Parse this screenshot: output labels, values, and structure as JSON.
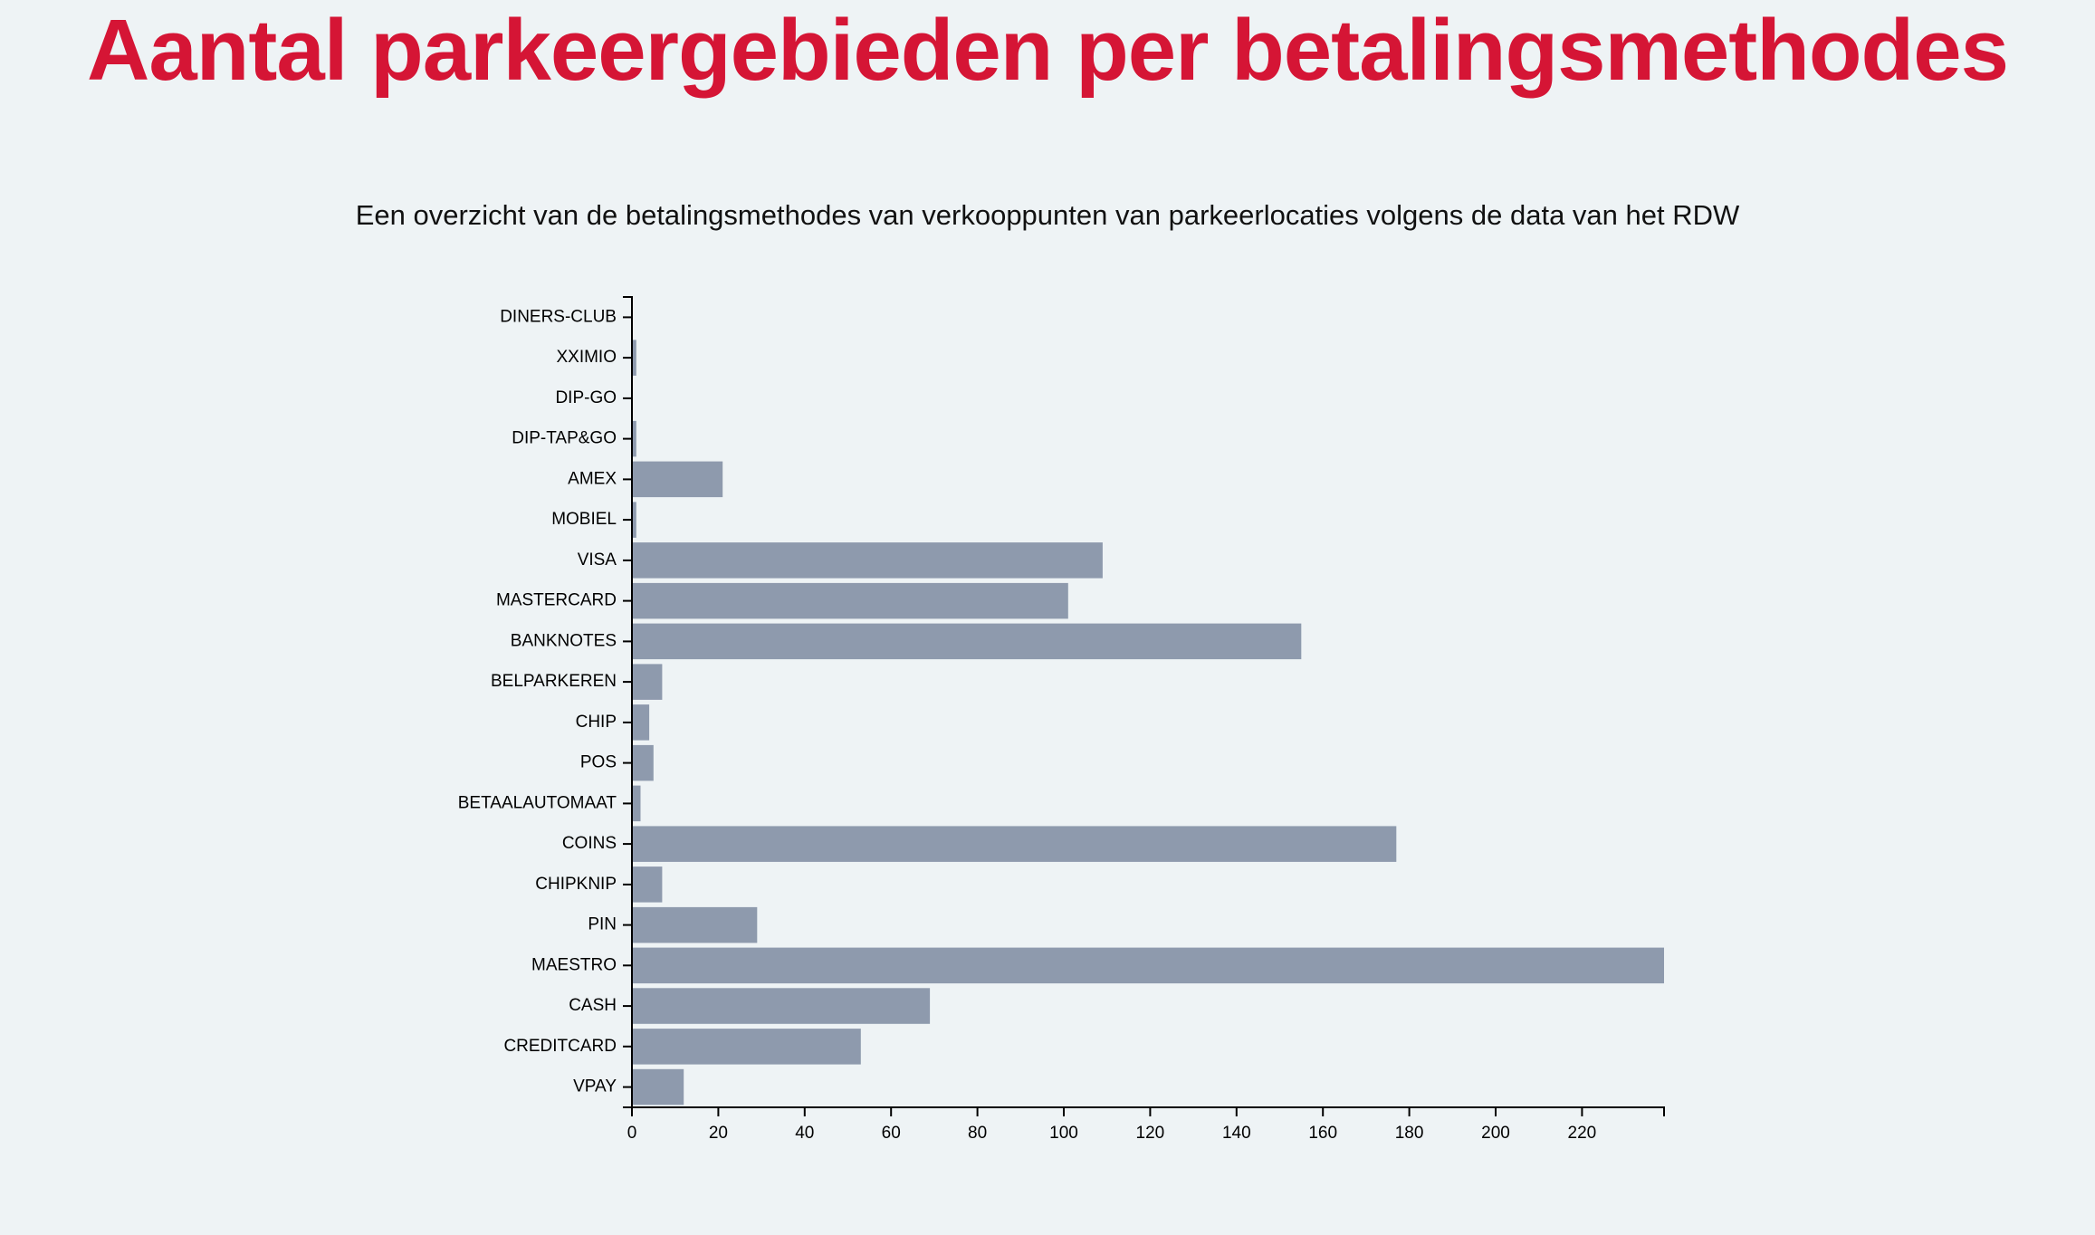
{
  "page": {
    "title": "Aantal parkeergebieden per betalingsmethodes",
    "subtitle": "Een overzicht van de betalingsmethodes van verkooppunten van parkeerlocaties volgens de data van het RDW"
  },
  "colors": {
    "title": "#d51535",
    "bar": "#8e9aad",
    "background": "#eef3f5"
  },
  "chart_data": {
    "type": "bar",
    "orientation": "horizontal",
    "categories": [
      "DINERS-CLUB",
      "XXIMIO",
      "DIP-GO",
      "DIP-TAP&GO",
      "AMEX",
      "MOBIEL",
      "VISA",
      "MASTERCARD",
      "BANKNOTES",
      "BELPARKEREN",
      "CHIP",
      "POS",
      "BETAALAUTOMAAT",
      "COINS",
      "CHIPKNIP",
      "PIN",
      "MAESTRO",
      "CASH",
      "CREDITCARD",
      "VPAY"
    ],
    "values": [
      0,
      1,
      0,
      1,
      21,
      1,
      109,
      101,
      155,
      7,
      4,
      5,
      2,
      177,
      7,
      29,
      239,
      69,
      53,
      12
    ],
    "xticks": [
      0,
      20,
      40,
      60,
      80,
      100,
      120,
      140,
      160,
      180,
      200,
      220
    ],
    "xlim": [
      0,
      239
    ],
    "title": "Aantal parkeergebieden per betalingsmethodes",
    "subtitle": "Een overzicht van de betalingsmethodes van verkooppunten van parkeerlocaties volgens de data van het RDW",
    "xlabel": "",
    "ylabel": "",
    "grid": false,
    "legend": "none"
  }
}
